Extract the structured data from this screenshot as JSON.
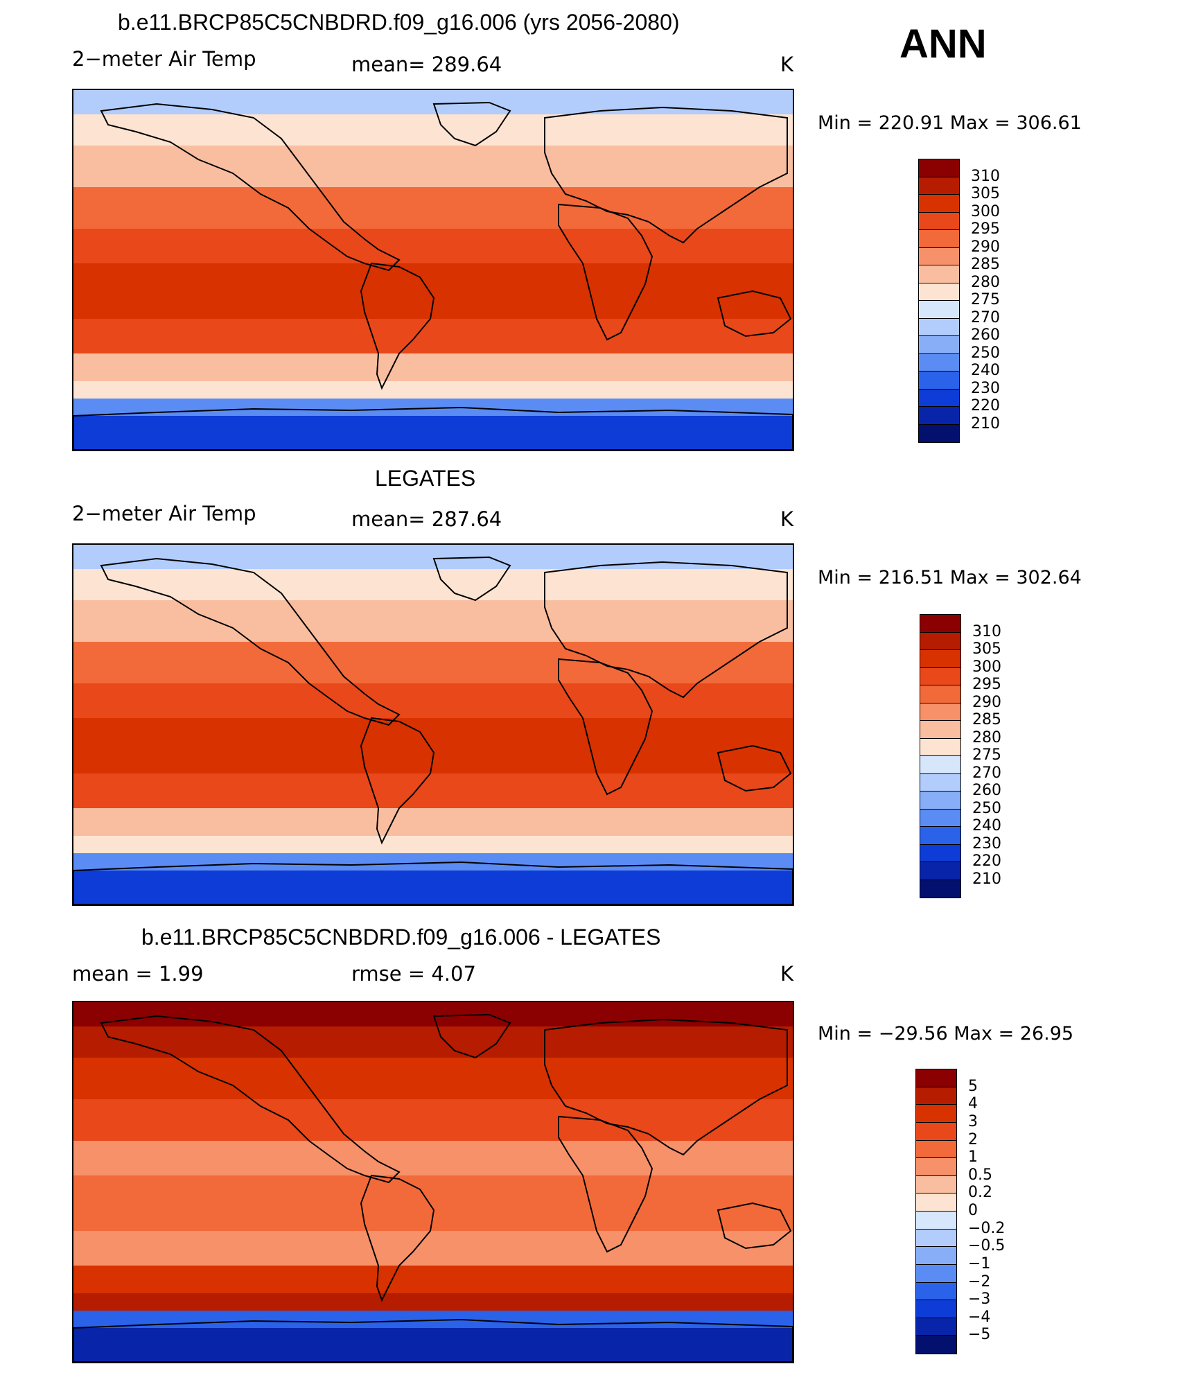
{
  "season": "ANN",
  "panels": [
    {
      "title": "b.e11.BRCP85C5CNBDRD.f09_g16.006 (yrs 2056-2080)",
      "left_label": "2−meter Air Temp",
      "mid_label": "mean=  289.64",
      "units": "K",
      "minmax": "Min  =  220.91  Max  =  306.61",
      "colorbar": {
        "labels": [
          "310",
          "305",
          "300",
          "295",
          "290",
          "285",
          "280",
          "275",
          "270",
          "260",
          "250",
          "240",
          "230",
          "220",
          "210"
        ],
        "colors": [
          "#8b0000",
          "#b51c00",
          "#d83200",
          "#e8481a",
          "#f26a3a",
          "#f6916a",
          "#f9bea0",
          "#fde4d2",
          "#d6e6fb",
          "#b2cdfb",
          "#88aef8",
          "#5b8cf3",
          "#2a62ea",
          "#0d3cd6",
          "#0824a8",
          "#03106e"
        ]
      },
      "map_palette": {
        "equator": "#d83200",
        "tropics": "#e8481a",
        "subtropics": "#f26a3a",
        "midlat": "#f9bea0",
        "cool": "#fde4d2",
        "highlat": "#b2cdfb",
        "polar": "#5b8cf3",
        "antarctic": "#0d3cd6"
      }
    },
    {
      "title": "LEGATES",
      "left_label": "2−meter Air Temp",
      "mid_label": "mean=  287.64",
      "units": "K",
      "minmax": "Min  =  216.51  Max  =  302.64",
      "colorbar": {
        "labels": [
          "310",
          "305",
          "300",
          "295",
          "290",
          "285",
          "280",
          "275",
          "270",
          "260",
          "250",
          "240",
          "230",
          "220",
          "210"
        ],
        "colors": [
          "#8b0000",
          "#b51c00",
          "#d83200",
          "#e8481a",
          "#f26a3a",
          "#f6916a",
          "#f9bea0",
          "#fde4d2",
          "#d6e6fb",
          "#b2cdfb",
          "#88aef8",
          "#5b8cf3",
          "#2a62ea",
          "#0d3cd6",
          "#0824a8",
          "#03106e"
        ]
      },
      "map_palette": {
        "equator": "#d83200",
        "tropics": "#e8481a",
        "subtropics": "#f26a3a",
        "midlat": "#f9bea0",
        "cool": "#fde4d2",
        "highlat": "#b2cdfb",
        "polar": "#5b8cf3",
        "antarctic": "#0d3cd6"
      }
    },
    {
      "title": "b.e11.BRCP85C5CNBDRD.f09_g16.006 - LEGATES",
      "left_label": "mean  =     1.99",
      "mid_label": "rmse  =     4.07",
      "units": "K",
      "minmax": "Min  =  −29.56  Max  =    26.95",
      "colorbar": {
        "labels": [
          "5",
          "4",
          "3",
          "2",
          "1",
          "0.5",
          "0.2",
          "0",
          "−0.2",
          "−0.5",
          "−1",
          "−2",
          "−3",
          "−4",
          "−5"
        ],
        "colors": [
          "#8b0000",
          "#b51c00",
          "#d83200",
          "#e8481a",
          "#f26a3a",
          "#f6916a",
          "#f9bea0",
          "#fde4d2",
          "#d6e6fb",
          "#b2cdfb",
          "#88aef8",
          "#5b8cf3",
          "#2a62ea",
          "#0d3cd6",
          "#0824a8",
          "#03106e"
        ]
      },
      "map_palette": {
        "equator": "#f26a3a",
        "tropics": "#f6916a",
        "subtropics": "#e8481a",
        "midlat": "#d83200",
        "cool": "#b51c00",
        "highlat": "#8b0000",
        "polar": "#2a62ea",
        "antarctic": "#0824a8"
      }
    }
  ]
}
